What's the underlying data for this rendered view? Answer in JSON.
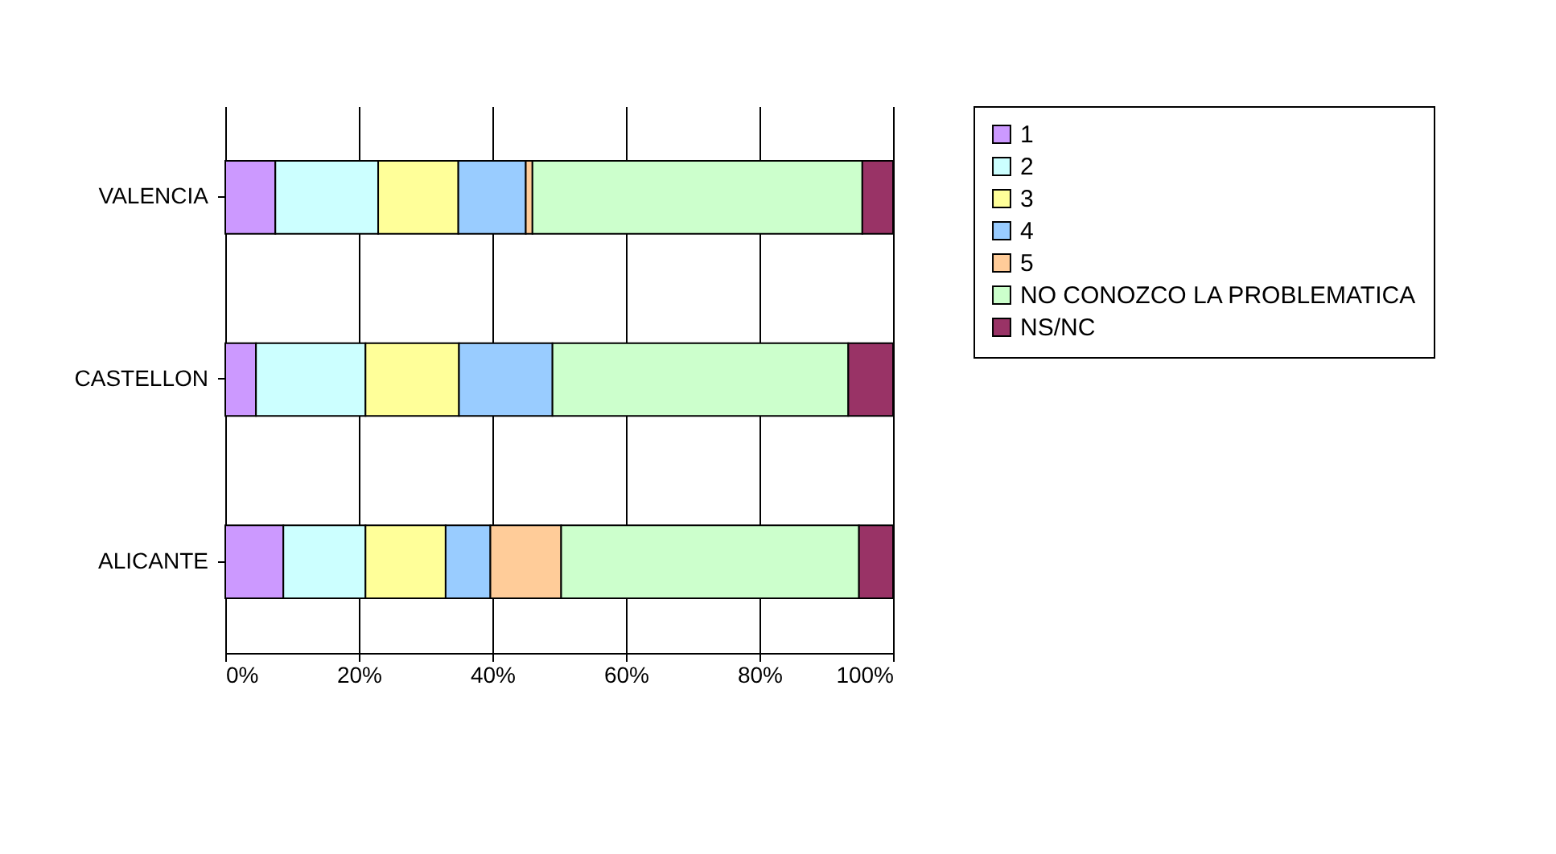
{
  "chart_data": {
    "type": "bar",
    "orientation": "horizontal",
    "stacked": true,
    "categories": [
      "VALENCIA",
      "CASTELLON",
      "ALICANTE"
    ],
    "series": [
      {
        "name": "1",
        "color": "#cc99ff",
        "values": [
          7.5,
          4.6,
          8.7
        ]
      },
      {
        "name": "2",
        "color": "#ccffff",
        "values": [
          15.4,
          16.4,
          12.3
        ]
      },
      {
        "name": "3",
        "color": "#ffff99",
        "values": [
          12,
          14,
          12
        ]
      },
      {
        "name": "4",
        "color": "#99ccff",
        "values": [
          10.1,
          14,
          6.7
        ]
      },
      {
        "name": "5",
        "color": "#ffcc99",
        "values": [
          1,
          null,
          10.6
        ]
      },
      {
        "name": "NO CONOZCO LA PROBLEMATICA",
        "color": "#ccffcc",
        "values": [
          49.4,
          44.3,
          44.6
        ]
      },
      {
        "name": "NS/NC",
        "color": "#993366",
        "values": [
          4.6,
          6.7,
          5.1
        ]
      }
    ],
    "xlim": [
      0,
      100
    ],
    "xticks": [
      {
        "value": 0,
        "label": "0%"
      },
      {
        "value": 20,
        "label": "20%"
      },
      {
        "value": 40,
        "label": "40%"
      },
      {
        "value": 60,
        "label": "60%"
      },
      {
        "value": 80,
        "label": "80%"
      },
      {
        "value": 100,
        "label": "100%"
      }
    ],
    "grid": "x",
    "legend": "right"
  }
}
